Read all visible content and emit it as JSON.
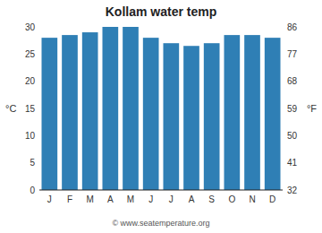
{
  "chart_data": {
    "type": "bar",
    "title": "Kollam water temp",
    "categories": [
      "J",
      "F",
      "M",
      "A",
      "M",
      "J",
      "J",
      "A",
      "S",
      "O",
      "N",
      "D"
    ],
    "values": [
      28,
      28.5,
      29,
      30,
      30,
      28,
      27,
      26.5,
      27,
      28.5,
      28.5,
      28
    ],
    "color": "#2f7fb5",
    "ylim": [
      0,
      30
    ],
    "yticks": [
      0,
      5,
      10,
      15,
      20,
      25,
      30
    ],
    "y_label": "°C",
    "y2lim": [
      32,
      86
    ],
    "y2ticks": [
      32,
      41,
      50,
      59,
      68,
      77,
      86
    ],
    "y2_label": "°F",
    "annotation": "© www.seatemperature.org",
    "grid": false
  }
}
